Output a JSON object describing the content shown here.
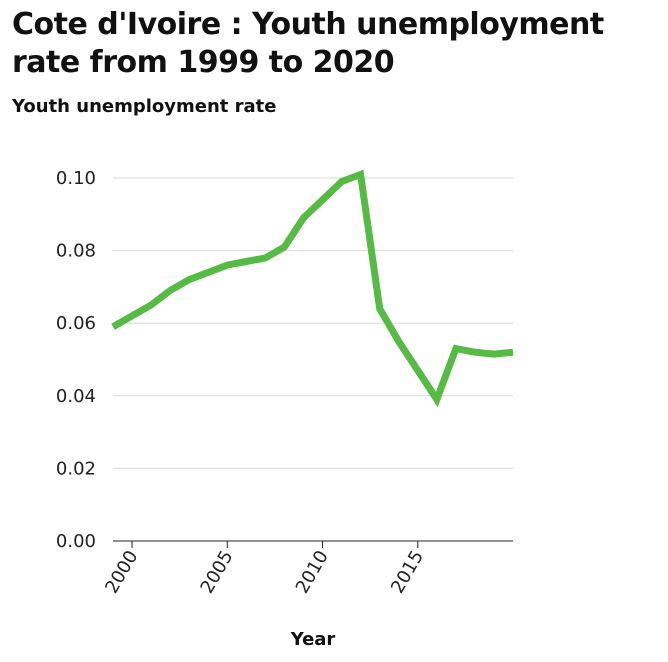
{
  "chart_data": {
    "type": "line",
    "title": "Cote d'Ivoire : Youth unemployment rate from 1999 to 2020",
    "ylabel": "Youth unemployment rate",
    "xlabel": "Year",
    "xlim": [
      1999,
      2020
    ],
    "ylim": [
      0,
      0.1
    ],
    "xticks": [
      2000,
      2005,
      2010,
      2015
    ],
    "yticks": [
      "0.00",
      "0.02",
      "0.04",
      "0.06",
      "0.08",
      "0.10"
    ],
    "grid": "horizontal",
    "color": "#55bb44",
    "series": [
      {
        "x": [
          1999,
          2000,
          2001,
          2002,
          2003,
          2004,
          2005,
          2006,
          2007,
          2008,
          2009,
          2010,
          2011,
          2012,
          2013,
          2014,
          2015,
          2016,
          2017,
          2018,
          2019,
          2020
        ],
        "values": [
          0.059,
          0.062,
          0.065,
          0.069,
          0.072,
          0.074,
          0.076,
          0.077,
          0.078,
          0.081,
          0.089,
          0.094,
          0.099,
          0.101,
          0.064,
          0.055,
          0.047,
          0.039,
          0.053,
          0.052,
          0.0515,
          0.052
        ]
      }
    ]
  }
}
